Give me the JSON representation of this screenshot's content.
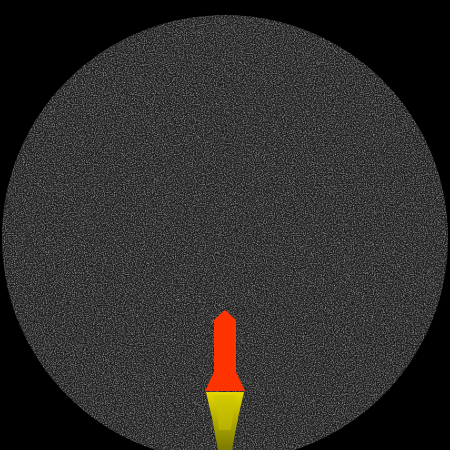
{
  "scene": {
    "background_color": "#000000",
    "disk_base_color": "#1a1a1a",
    "star_color": "#6b6b6b",
    "star_highlight_color": "#8a8a8a"
  },
  "rocket": {
    "body_color": "#ff3300",
    "exhaust_color_inner": "#e6d800",
    "exhaust_color_outer": "#7a7a00"
  },
  "icons": {
    "rocket": "rocket-icon",
    "exhaust": "exhaust-flame-icon",
    "planet": "planet-disk"
  }
}
